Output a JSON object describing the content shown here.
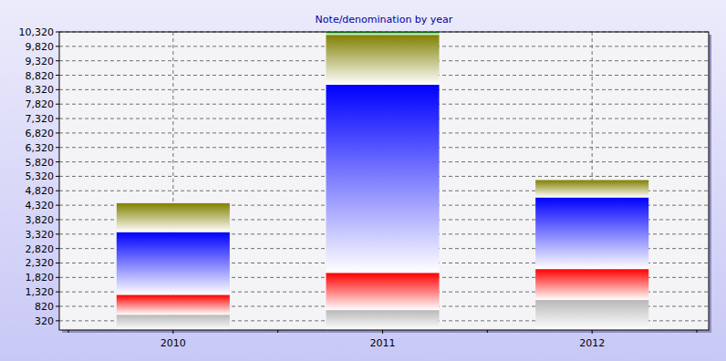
{
  "chart_data": {
    "type": "bar",
    "title": "Note/denomination by year",
    "stacked": true,
    "grid": true,
    "categories": [
      "2010",
      "2011",
      "2012"
    ],
    "series": [
      {
        "color": "#b8b8b8",
        "values": [
          530,
          690,
          1040
        ]
      },
      {
        "color": "#ff0000",
        "values": [
          690,
          1290,
          1070
        ]
      },
      {
        "color": "#0000ff",
        "values": [
          2170,
          6510,
          2480
        ]
      },
      {
        "color": "#808000",
        "values": [
          1000,
          1730,
          600
        ]
      },
      {
        "color": "#00c000",
        "values": [
          0,
          100,
          0
        ]
      }
    ],
    "ylim": [
      0,
      10320
    ],
    "yticks": [
      320,
      820,
      {
        "value": 1320,
        "label": "1,320"
      },
      {
        "value": 1820,
        "label": "1,820"
      },
      {
        "value": 2320,
        "label": "2,320"
      },
      {
        "value": 2820,
        "label": "2,820"
      },
      {
        "value": 3320,
        "label": "3,320"
      },
      {
        "value": 3820,
        "label": "3,820"
      },
      {
        "value": 4320,
        "label": "4,320"
      },
      {
        "value": 4820,
        "label": "4,820"
      },
      {
        "value": 5320,
        "label": "5,320"
      },
      {
        "value": 5820,
        "label": "5,820"
      },
      {
        "value": 6320,
        "label": "6,320"
      },
      {
        "value": 6820,
        "label": "6,820"
      },
      {
        "value": 7320,
        "label": "7,320"
      },
      {
        "value": 7820,
        "label": "7,820"
      },
      {
        "value": 8320,
        "label": "8,320"
      },
      {
        "value": 8820,
        "label": "8,820"
      },
      {
        "value": 9320,
        "label": "9,320"
      },
      {
        "value": 9820,
        "label": "9,820"
      },
      {
        "value": 10320,
        "label": "10,320"
      }
    ]
  }
}
